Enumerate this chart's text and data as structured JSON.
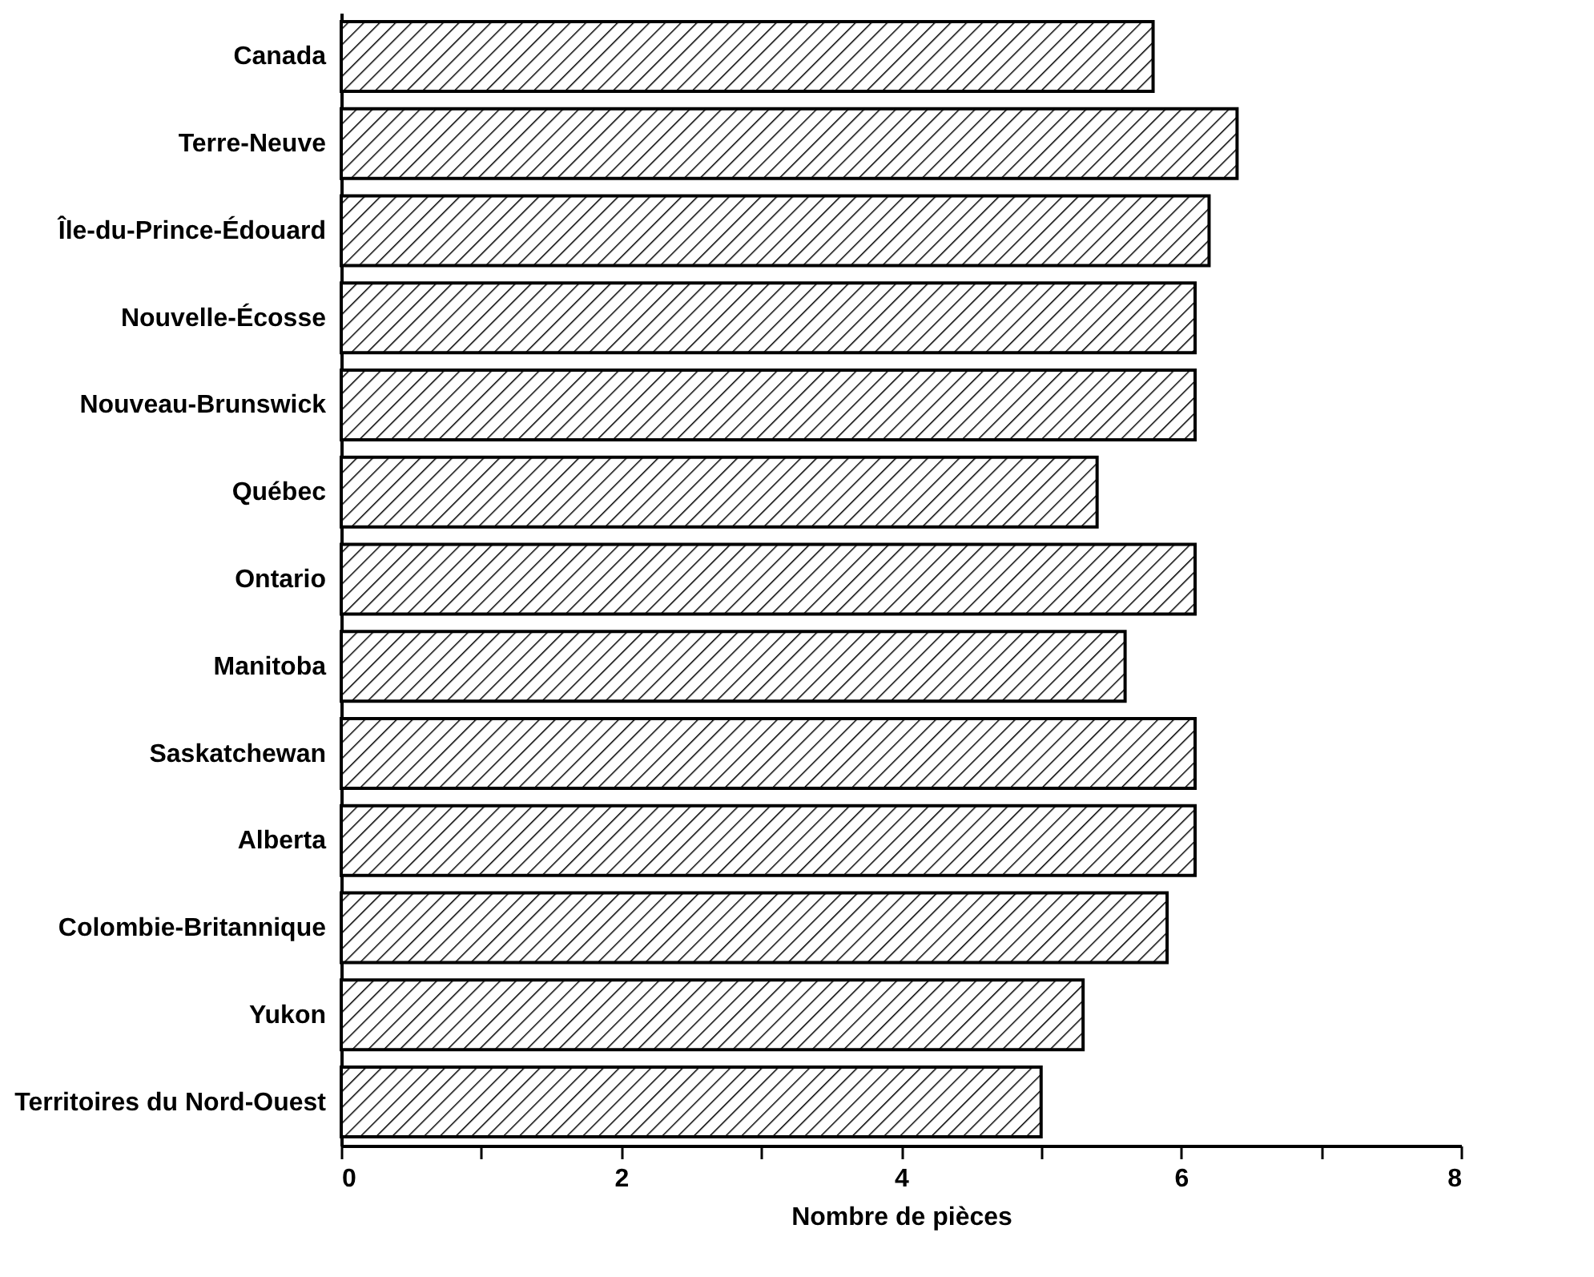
{
  "chart_data": {
    "type": "bar",
    "orientation": "horizontal",
    "xlabel": "Nombre de pièces",
    "categories": [
      "Canada",
      "Terre-Neuve",
      "Île-du-Prince-Édouard",
      "Nouvelle-Écosse",
      "Nouveau-Brunswick",
      "Québec",
      "Ontario",
      "Manitoba",
      "Saskatchewan",
      "Alberta",
      "Colombie-Britannique",
      "Yukon",
      "Territoires du Nord-Ouest"
    ],
    "values": [
      5.8,
      6.4,
      6.2,
      6.1,
      6.1,
      5.4,
      6.1,
      5.6,
      6.1,
      6.1,
      5.9,
      5.3,
      5.0
    ],
    "color": "#000000",
    "xlim": [
      0,
      8
    ],
    "xticks": [
      0,
      {
        "value": 1,
        "label": null
      },
      2,
      {
        "value": 3,
        "label": null
      },
      4,
      {
        "value": 5,
        "label": null
      },
      6,
      {
        "value": 7,
        "label": null
      },
      8
    ]
  }
}
